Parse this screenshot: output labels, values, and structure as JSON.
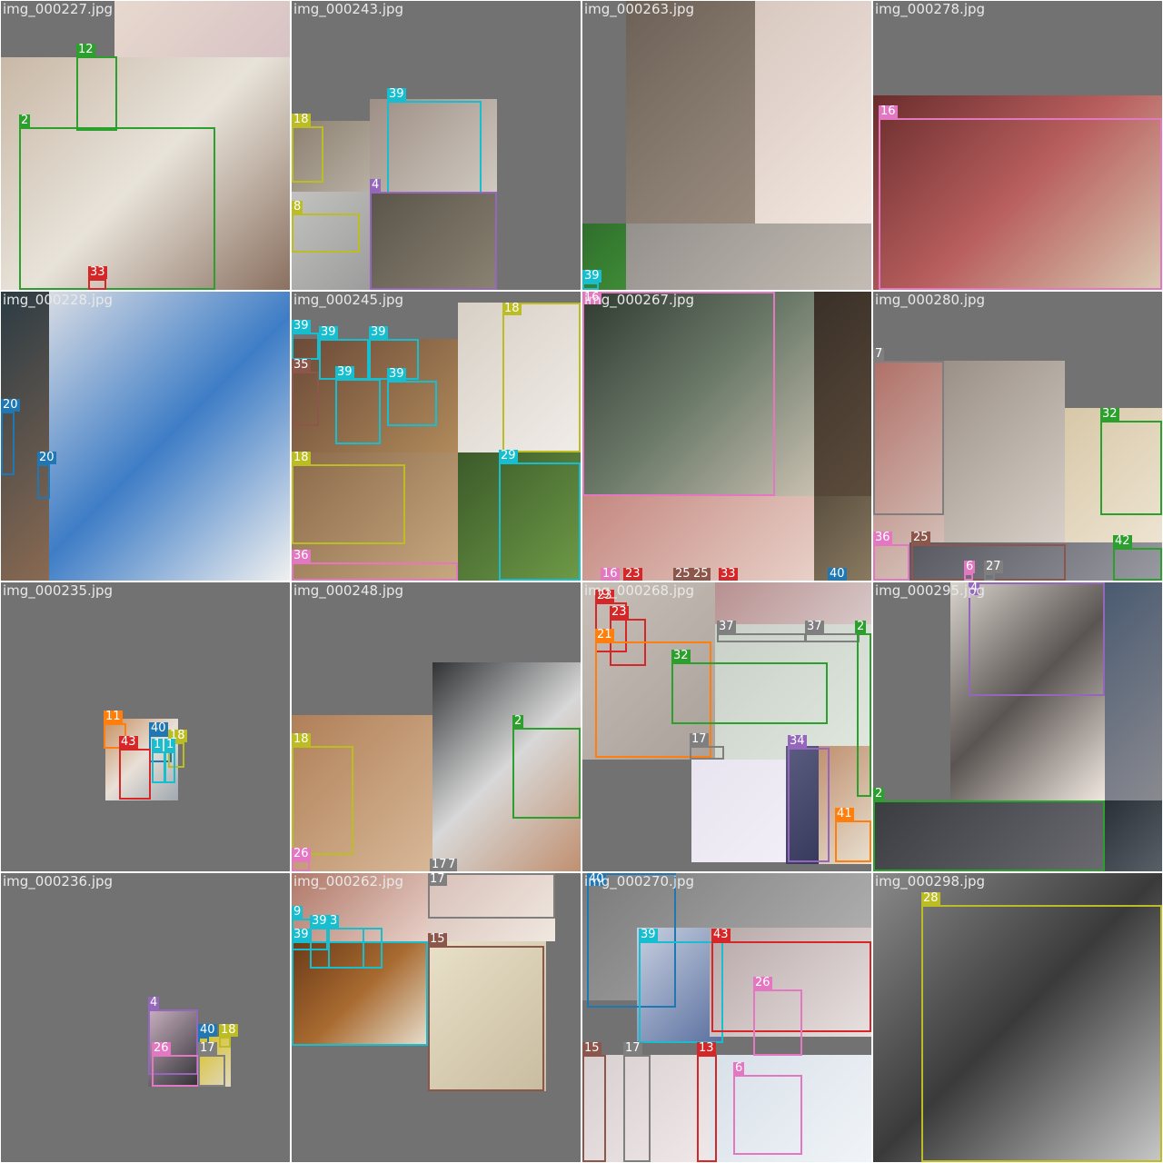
{
  "palette": {
    "0": "#1f77b4",
    "2": "#2ca02c",
    "4": "#9467bd",
    "6": "#e377c2",
    "7": "#7f7f7f",
    "8": "#bcbd22",
    "9": "#17becf",
    "11": "#ff7f0e",
    "12": "#2ca02c",
    "13": "#d62728",
    "15": "#8c564b",
    "16": "#e377c2",
    "17": "#7f7f7f",
    "18": "#bcbd22",
    "20": "#1f77b4",
    "21": "#ff7f0e",
    "23": "#d62728",
    "25": "#8c564b",
    "26": "#e377c2",
    "27": "#7f7f7f",
    "28": "#bcbd22",
    "29": "#17becf",
    "32": "#2ca02c",
    "33": "#d62728",
    "34": "#9467bd",
    "35": "#8c564b",
    "36": "#e377c2",
    "37": "#7f7f7f",
    "39": "#17becf",
    "40": "#1f77b4",
    "41": "#ff7f0e",
    "42": "#2ca02c",
    "43": "#d62728"
  },
  "tiles": [
    {
      "id": "t0",
      "filename": "img_000227.jpg"
    },
    {
      "id": "t1",
      "filename": "img_000243.jpg"
    },
    {
      "id": "t2",
      "filename": "img_000263.jpg"
    },
    {
      "id": "t3",
      "filename": "img_000278.jpg"
    },
    {
      "id": "t4",
      "filename": "img_000228.jpg"
    },
    {
      "id": "t5",
      "filename": "img_000245.jpg"
    },
    {
      "id": "t6",
      "filename": "img_000267.jpg"
    },
    {
      "id": "t7",
      "filename": "img_000280.jpg"
    },
    {
      "id": "t8",
      "filename": "img_000235.jpg"
    },
    {
      "id": "t9",
      "filename": "img_000248.jpg"
    },
    {
      "id": "t10",
      "filename": "img_000268.jpg"
    },
    {
      "id": "t11",
      "filename": "img_000295.jpg"
    },
    {
      "id": "t12",
      "filename": "img_000236.jpg"
    },
    {
      "id": "t13",
      "filename": "img_000262.jpg"
    },
    {
      "id": "t14",
      "filename": "img_000270.jpg"
    },
    {
      "id": "t15",
      "filename": "img_000298.jpg"
    }
  ],
  "labels": {
    "t0": [
      "12",
      "2",
      "33"
    ],
    "t1": [
      "18",
      "39",
      "4",
      "8"
    ],
    "t2": [
      "39"
    ],
    "t3": [
      "16"
    ],
    "t4": [
      "20",
      "20"
    ],
    "t5": [
      "39",
      "39",
      "39",
      "35",
      "39",
      "39",
      "18",
      "18",
      "29",
      "36"
    ],
    "t6": [
      "16",
      "16",
      "23",
      "25",
      "25",
      "33",
      "40"
    ],
    "t7": [
      "7",
      "32",
      "36",
      "25",
      "42",
      "6",
      "27"
    ],
    "t8": [
      "11",
      "40",
      "18",
      "43",
      "1",
      "1"
    ],
    "t9": [
      "18",
      "2",
      "26",
      "17",
      "7"
    ],
    "t10": [
      "23",
      "23",
      "21",
      "32",
      "37",
      "37",
      "2",
      "17",
      "34",
      "41"
    ],
    "t11": [
      "4",
      "2"
    ],
    "t12": [
      "4",
      "40",
      "18",
      "26",
      "17"
    ],
    "t13": [
      "17",
      "9",
      "39",
      "3",
      "39",
      "15"
    ],
    "t14": [
      "40",
      "39",
      "43",
      "26",
      "15",
      "17",
      "13",
      "6"
    ],
    "t15": [
      "28"
    ]
  }
}
